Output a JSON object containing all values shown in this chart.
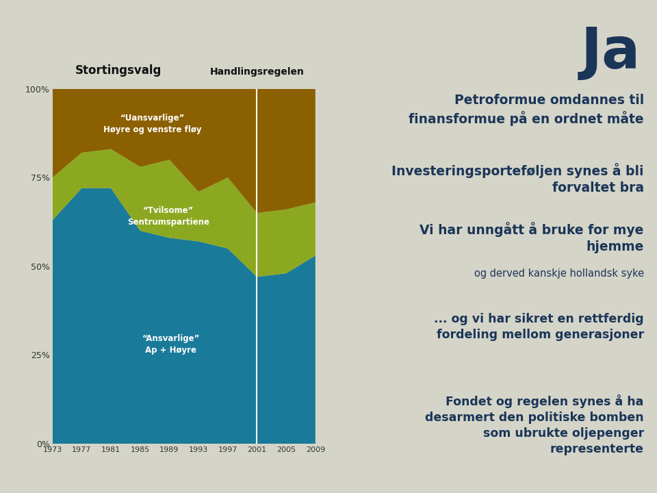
{
  "years": [
    1973,
    1977,
    1981,
    1985,
    1989,
    1993,
    1997,
    2001,
    2005,
    2009
  ],
  "ansvarlige": [
    63,
    72,
    72,
    60,
    58,
    57,
    55,
    47,
    48,
    53
  ],
  "tvilsome": [
    12,
    10,
    11,
    18,
    22,
    14,
    20,
    18,
    18,
    15
  ],
  "uansvarlige": [
    25,
    18,
    17,
    22,
    20,
    29,
    25,
    35,
    34,
    32
  ],
  "color_ansvarlige": "#1a7a9a",
  "color_tvilsome": "#8ca820",
  "color_uansvarlige": "#8b6000",
  "background_color": "#d4d4c8",
  "chart_title": "Stortingsvalg",
  "handlingsregelen_label": "Handlingsregelen",
  "handlingsregelen_year": 2001,
  "label_ansvarlige_line1": "“Ansvarlige”",
  "label_ansvarlige_line2": "Ap + Høyre",
  "label_tvilsome_line1": "“Tvilsome”",
  "label_tvilsome_line2": "Sentrumspartiene",
  "label_uansvarlige_line1": "“Uansvarlige”",
  "label_uansvarlige_line2": "Høyre og venstre fløy",
  "right_title": "Ja",
  "right_text_1": "Petroformue omdannes til\nfinansformue på en ordnet måte",
  "right_text_2": "Investeringsporteføljen synes å bli\nforvaltet bra",
  "right_text_3": "Vi har unngått å bruke for mye\nhjemme",
  "right_text_4": "og derved kanskje hollandsk syke",
  "right_text_5": "... og vi har sikret en rettferdig\nfordeling mellom generasjoner",
  "right_text_6": "Fondet og regelen synes å ha\ndesarmert den politiske bomben\nsom ubrukte oljepenger\nrepresenterte",
  "right_color": "#1a3558",
  "yticks": [
    0,
    25,
    50,
    75,
    100
  ],
  "ytick_labels": [
    "0%",
    "25%",
    "50%",
    "75%",
    "100%"
  ]
}
